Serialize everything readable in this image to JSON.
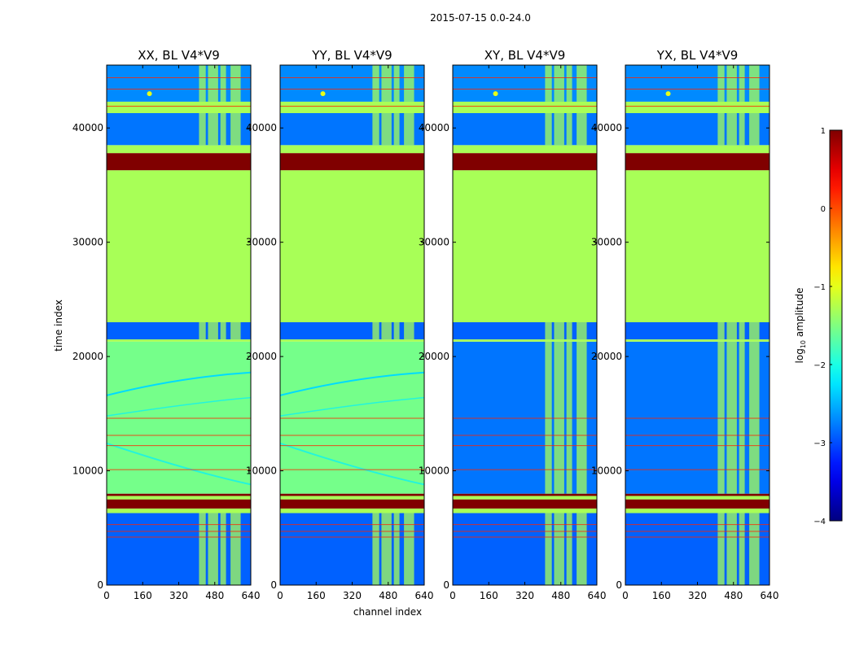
{
  "chart_data": {
    "type": "heatmap",
    "suptitle": "2015-07-15 0.0-24.0",
    "xlabel": "channel index",
    "ylabel": "time index",
    "xlim": [
      0,
      640
    ],
    "ylim": [
      0,
      45500
    ],
    "xticks": [
      "0",
      "160",
      "320",
      "480",
      "640"
    ],
    "xtick_values": [
      0,
      160,
      320,
      480,
      640
    ],
    "yticks": [
      "0",
      "10000",
      "20000",
      "30000",
      "40000"
    ],
    "ytick_values": [
      0,
      10000,
      20000,
      30000,
      40000
    ],
    "colorbar": {
      "label_prefix": "log",
      "label_sub": "10",
      "label_suffix": " amplitude",
      "range": [
        -4,
        1
      ],
      "ticks": [
        "1",
        "0",
        "−1",
        "−2",
        "−3",
        "−4"
      ],
      "tick_values": [
        1,
        0,
        -1,
        -2,
        -3,
        -4
      ],
      "colormap": "jet"
    },
    "panels": [
      {
        "name": "XX",
        "title": "XX, BL V4*V9",
        "variant": "parallel"
      },
      {
        "name": "YY",
        "title": "YY, BL V4*V9",
        "variant": "parallel"
      },
      {
        "name": "XY",
        "title": "XY, BL V4*V9",
        "variant": "cross"
      },
      {
        "name": "YX",
        "title": "YX, BL V4*V9",
        "variant": "cross"
      }
    ],
    "time_bands": [
      {
        "t0": 0,
        "t1": 6300,
        "region": "noise",
        "level": -2.9
      },
      {
        "t0": 6300,
        "t1": 6700,
        "region": "flag",
        "level": -1.3
      },
      {
        "t0": 6700,
        "t1": 7500,
        "region": "bad",
        "level": 1.0
      },
      {
        "t0": 7500,
        "t1": 7800,
        "region": "flag",
        "level": -1.3
      },
      {
        "t0": 7800,
        "t1": 8000,
        "region": "bad",
        "level": 1.0
      },
      {
        "t0": 8000,
        "t1": 21300,
        "region": "signal",
        "level": -1.6
      },
      {
        "t0": 21300,
        "t1": 21500,
        "region": "flag",
        "level": -1.3
      },
      {
        "t0": 21500,
        "t1": 23000,
        "region": "noise",
        "level": -2.9
      },
      {
        "t0": 23000,
        "t1": 36300,
        "region": "flag",
        "level": -1.3
      },
      {
        "t0": 36300,
        "t1": 37800,
        "region": "bad",
        "level": 1.0
      },
      {
        "t0": 37800,
        "t1": 38500,
        "region": "flag",
        "level": -1.3
      },
      {
        "t0": 38500,
        "t1": 41300,
        "region": "noise",
        "level": -2.8
      },
      {
        "t0": 41300,
        "t1": 42300,
        "region": "flag",
        "level": -1.3
      },
      {
        "t0": 42300,
        "t1": 45500,
        "region": "noise",
        "level": -2.7
      }
    ],
    "rfi_channels": [
      {
        "c0": 410,
        "c1": 440
      },
      {
        "c0": 450,
        "c1": 495
      },
      {
        "c0": 505,
        "c1": 530
      },
      {
        "c0": 550,
        "c1": 595
      }
    ],
    "rfi_level": -1.3
  }
}
